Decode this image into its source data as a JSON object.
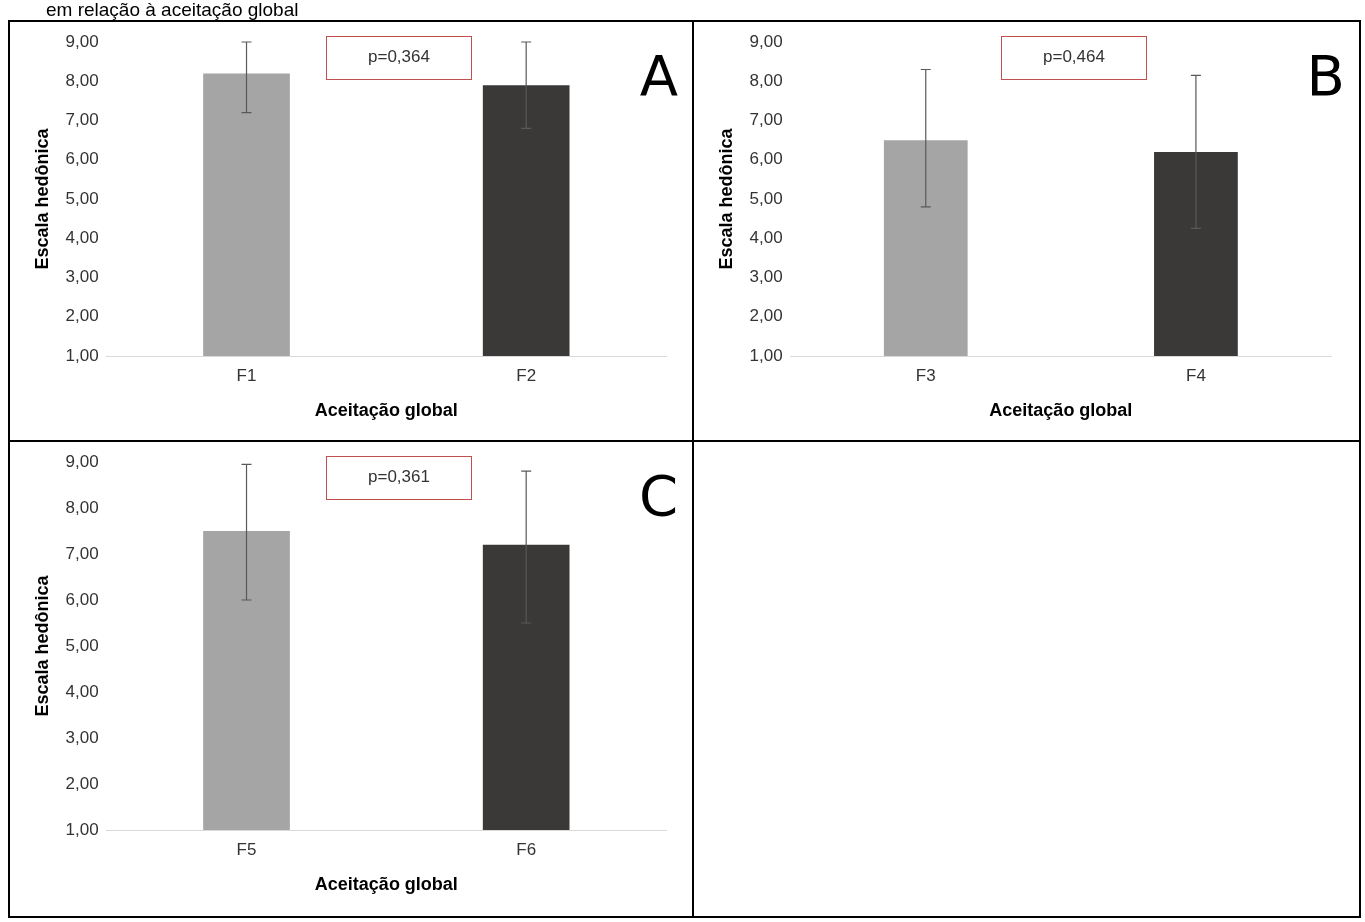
{
  "chart_data": [
    {
      "type": "bar",
      "title": "em relação à aceitação global",
      "categories": [
        "F1",
        "F2"
      ],
      "values": [
        8.2,
        7.9
      ],
      "colors": [
        "#a5a5a5",
        "#3b3838"
      ],
      "errors": [
        [
          7.2,
          9.0
        ],
        [
          6.8,
          9.0
        ]
      ],
      "xlabel": "Aceitação global",
      "ylabel": "Escala hedônica",
      "ylim": [
        1,
        9
      ],
      "yticks": [
        {
          "value": 1,
          "label": "1,00"
        },
        {
          "value": 2,
          "label": "2,00"
        },
        {
          "value": 3,
          "label": "3,00"
        },
        {
          "value": 4,
          "label": "4,00"
        },
        {
          "value": 5,
          "label": "5,00"
        },
        {
          "value": 6,
          "label": "6,00"
        },
        {
          "value": 7,
          "label": "7,00"
        },
        {
          "value": 8,
          "label": "8,00"
        },
        {
          "value": 9,
          "label": "9,00"
        }
      ],
      "grid": false,
      "legend": false,
      "annotations": [
        "p=0,364",
        "A"
      ]
    },
    {
      "type": "bar",
      "categories": [
        "F3",
        "F4"
      ],
      "values": [
        6.5,
        6.2
      ],
      "colors": [
        "#a5a5a5",
        "#3b3838"
      ],
      "errors": [
        [
          4.8,
          8.3
        ],
        [
          4.25,
          8.15
        ]
      ],
      "xlabel": "Aceitação global",
      "ylabel": "Escala hedônica",
      "ylim": [
        1,
        9
      ],
      "yticks": [
        {
          "value": 1,
          "label": "1,00"
        },
        {
          "value": 2,
          "label": "2,00"
        },
        {
          "value": 3,
          "label": "3,00"
        },
        {
          "value": 4,
          "label": "4,00"
        },
        {
          "value": 5,
          "label": "5,00"
        },
        {
          "value": 6,
          "label": "6,00"
        },
        {
          "value": 7,
          "label": "7,00"
        },
        {
          "value": 8,
          "label": "8,00"
        },
        {
          "value": 9,
          "label": "9,00"
        }
      ],
      "grid": false,
      "legend": false,
      "annotations": [
        "p=0,464",
        "B"
      ]
    },
    {
      "type": "bar",
      "categories": [
        "F5",
        "F6"
      ],
      "values": [
        7.5,
        7.2
      ],
      "colors": [
        "#a5a5a5",
        "#3b3838"
      ],
      "errors": [
        [
          6.0,
          8.95
        ],
        [
          5.5,
          8.8
        ]
      ],
      "xlabel": "Aceitação global",
      "ylabel": "Escala hedônica",
      "ylim": [
        1,
        9
      ],
      "yticks": [
        {
          "value": 1,
          "label": "1,00"
        },
        {
          "value": 2,
          "label": "2,00"
        },
        {
          "value": 3,
          "label": "3,00"
        },
        {
          "value": 4,
          "label": "4,00"
        },
        {
          "value": 5,
          "label": "5,00"
        },
        {
          "value": 6,
          "label": "6,00"
        },
        {
          "value": 7,
          "label": "7,00"
        },
        {
          "value": 8,
          "label": "8,00"
        },
        {
          "value": 9,
          "label": "9,00"
        }
      ],
      "grid": false,
      "legend": false,
      "annotations": [
        "p=0,361",
        "C"
      ]
    }
  ]
}
